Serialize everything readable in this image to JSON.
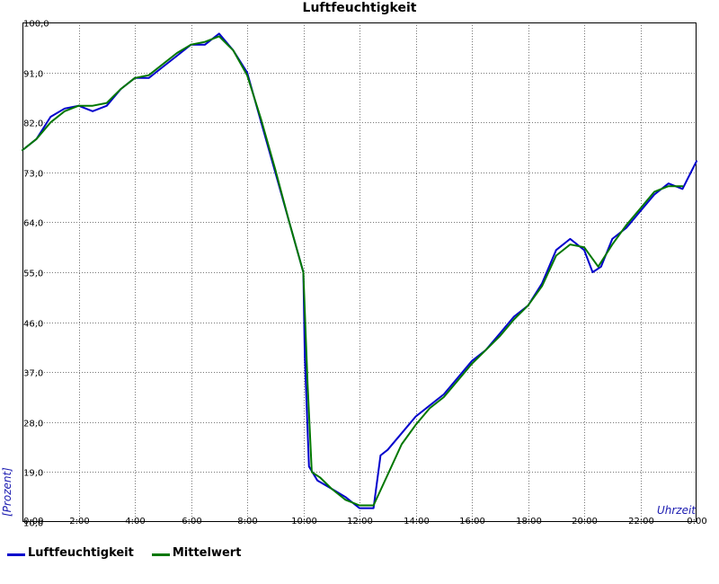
{
  "chart_data": {
    "type": "line",
    "title": "Luftfeuchtigkeit",
    "xlabel": "Uhrzeit",
    "ylabel": "[Prozent]",
    "xlim": [
      0,
      24
    ],
    "ylim": [
      10,
      100
    ],
    "x_ticks": [
      0,
      2,
      4,
      6,
      8,
      10,
      12,
      14,
      16,
      18,
      20,
      22,
      24
    ],
    "x_tick_labels": [
      "0:00",
      "2:00",
      "4:00",
      "6:00",
      "8:00",
      "10:00",
      "12:00",
      "14:00",
      "16:00",
      "18:00",
      "20:00",
      "22:00",
      "0:00"
    ],
    "y_ticks": [
      10,
      19,
      28,
      37,
      46,
      55,
      64,
      73,
      82,
      91,
      100
    ],
    "y_tick_labels": [
      "10,0",
      "19,0",
      "28,0",
      "37,0",
      "46,0",
      "55,0",
      "64,0",
      "73,0",
      "82,0",
      "91,0",
      "100,0"
    ],
    "grid": true,
    "legend_placement": "bottom-left",
    "series": [
      {
        "name": "Luftfeuchtigkeit",
        "color": "#0000cc",
        "x": [
          0,
          0.5,
          1,
          1.5,
          2,
          2.5,
          3,
          3.5,
          4,
          4.5,
          5,
          5.5,
          6,
          6.5,
          7,
          7.5,
          8,
          8.5,
          9,
          9.5,
          10,
          10.05,
          10.2,
          10.5,
          11,
          11.5,
          12,
          12.5,
          12.75,
          13,
          13.5,
          14,
          14.5,
          15,
          15.5,
          16,
          16.5,
          17,
          17.5,
          18,
          18.5,
          19,
          19.5,
          20,
          20.3,
          20.6,
          21,
          21.5,
          22,
          22.5,
          23,
          23.5,
          24
        ],
        "y": [
          77,
          79,
          83,
          84.5,
          85,
          84,
          85,
          88,
          90,
          90,
          92,
          94,
          96,
          96,
          98,
          95,
          91,
          82,
          73,
          64,
          55,
          40,
          20,
          17.5,
          16,
          14.5,
          12.5,
          12.5,
          22,
          23,
          26,
          29,
          31,
          33,
          36,
          39,
          41,
          44,
          47,
          49,
          53,
          59,
          61,
          59,
          55,
          56,
          61,
          63,
          66,
          69,
          71,
          70,
          75
        ]
      },
      {
        "name": "Mittelwert",
        "color": "#007700",
        "x": [
          0,
          0.5,
          1,
          1.5,
          2,
          2.5,
          3,
          3.5,
          4,
          4.5,
          5,
          5.5,
          6,
          6.5,
          7,
          7.5,
          8,
          8.5,
          9,
          9.5,
          10,
          10.15,
          10.3,
          10.6,
          11,
          11.5,
          12,
          12.5,
          13,
          13.5,
          14,
          14.5,
          15,
          15.5,
          16,
          16.5,
          17,
          17.5,
          18,
          18.5,
          19,
          19.5,
          20,
          20.5,
          21,
          21.5,
          22,
          22.5,
          23,
          23.5
        ],
        "y": [
          77,
          79,
          82,
          84,
          85,
          85,
          85.5,
          88,
          90,
          90.5,
          92.5,
          94.5,
          96,
          96.5,
          97.5,
          95,
          90.5,
          82.5,
          73.5,
          64,
          55,
          35,
          19,
          18,
          16,
          14,
          13,
          13,
          18.5,
          24,
          27.5,
          30.5,
          32.5,
          35.5,
          38.5,
          41,
          43.5,
          46.5,
          49,
          52.5,
          58,
          60,
          59.5,
          56,
          60,
          63.5,
          66.5,
          69.5,
          70.5,
          70.5
        ]
      }
    ]
  },
  "legend": {
    "items": [
      {
        "label": "Luftfeuchtigkeit",
        "color": "#0000cc"
      },
      {
        "label": "Mittelwert",
        "color": "#007700"
      }
    ]
  }
}
